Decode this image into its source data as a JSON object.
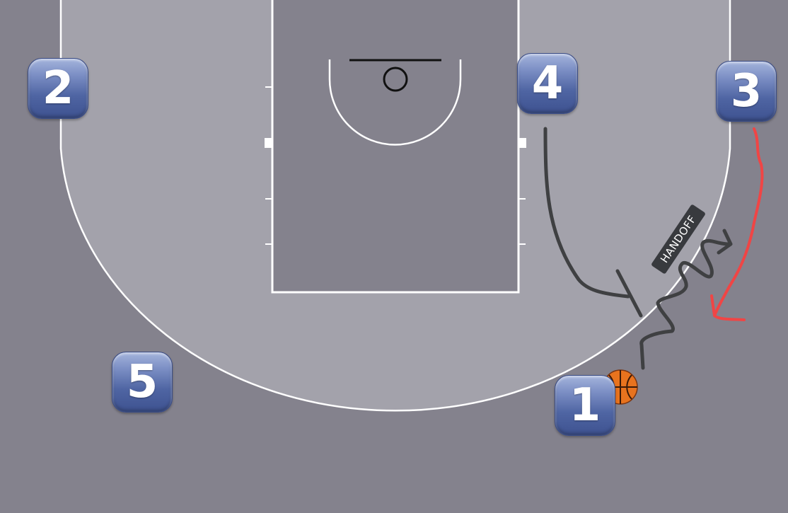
{
  "players": [
    {
      "id": "p1",
      "label": "1",
      "has_ball": true
    },
    {
      "id": "p2",
      "label": "2"
    },
    {
      "id": "p3",
      "label": "3"
    },
    {
      "id": "p4",
      "label": "4"
    },
    {
      "id": "p5",
      "label": "5"
    }
  ],
  "annotations": {
    "handoff_label": "HANDOFF"
  },
  "colors": {
    "court_outer": "#84828d",
    "court_inside_arc": "#a3a2ab",
    "paint": "#84828d",
    "lines": "#ffffff",
    "screen_path": "#3f4042",
    "dribble_path": "#3f4042",
    "cut_path": "#f04545",
    "player_tile": "#4f65a3",
    "ball": "#e8731e"
  },
  "icons": {
    "ball": "basketball-icon",
    "player_tile": "numbered-player-tile"
  }
}
